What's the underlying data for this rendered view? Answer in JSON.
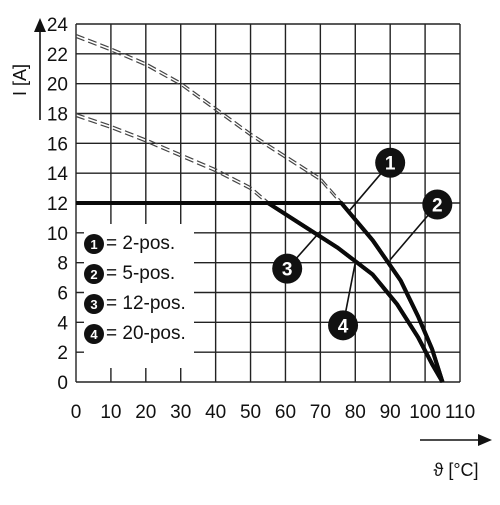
{
  "chart_data": {
    "type": "line",
    "ylabel": "I [A]",
    "xlabel": "ϑ [°C]",
    "xlim": [
      0,
      110
    ],
    "ylim": [
      0,
      24
    ],
    "x_ticks": [
      0,
      10,
      20,
      30,
      40,
      50,
      60,
      70,
      80,
      90,
      100,
      110
    ],
    "y_ticks": [
      0,
      2,
      4,
      6,
      8,
      10,
      12,
      14,
      16,
      18,
      20,
      22,
      24
    ],
    "grid": true,
    "series": [
      {
        "name": "2-pos.",
        "label": "1",
        "style": "solid",
        "points": [
          [
            0,
            12
          ],
          [
            76,
            12
          ],
          [
            85,
            9.5
          ],
          [
            93,
            6.8
          ],
          [
            98,
            4.4
          ],
          [
            102,
            2.2
          ],
          [
            105,
            0
          ]
        ]
      },
      {
        "name": "5-pos.",
        "label": "2",
        "style": "solid",
        "points": [
          [
            0,
            12
          ],
          [
            76,
            12
          ],
          [
            85,
            9.5
          ],
          [
            93,
            6.8
          ],
          [
            98,
            4.4
          ],
          [
            102,
            2.2
          ],
          [
            105,
            0
          ]
        ]
      },
      {
        "name": "12-pos.",
        "label": "3",
        "style": "solid",
        "points": [
          [
            0,
            12
          ],
          [
            55,
            12
          ],
          [
            65,
            10.5
          ],
          [
            75,
            9
          ],
          [
            85,
            7.2
          ],
          [
            92,
            5.2
          ],
          [
            98,
            3
          ],
          [
            102,
            1.2
          ],
          [
            105,
            0
          ]
        ]
      },
      {
        "name": "20-pos.",
        "label": "4",
        "style": "solid",
        "points": [
          [
            0,
            12
          ],
          [
            55,
            12
          ],
          [
            65,
            10.5
          ],
          [
            75,
            9
          ],
          [
            85,
            7.2
          ],
          [
            92,
            5.2
          ],
          [
            98,
            3
          ],
          [
            102,
            1.2
          ],
          [
            105,
            0
          ]
        ]
      }
    ],
    "derating_curves": [
      {
        "style": "dashed",
        "points": [
          [
            0,
            23.2
          ],
          [
            10,
            22.3
          ],
          [
            20,
            21.3
          ],
          [
            30,
            20.0
          ],
          [
            40,
            18.3
          ],
          [
            50,
            16.6
          ],
          [
            60,
            15.1
          ],
          [
            70,
            13.6
          ],
          [
            76,
            12
          ]
        ]
      },
      {
        "style": "dashed",
        "points": [
          [
            0,
            17.9
          ],
          [
            10,
            17.1
          ],
          [
            20,
            16.2
          ],
          [
            30,
            15.2
          ],
          [
            40,
            14.2
          ],
          [
            50,
            13.0
          ],
          [
            55,
            12
          ]
        ]
      }
    ],
    "legend": [
      {
        "badge": "1",
        "text": "= 2-pos."
      },
      {
        "badge": "2",
        "text": "= 5-pos."
      },
      {
        "badge": "3",
        "text": "= 12-pos."
      },
      {
        "badge": "4",
        "text": "= 20-pos."
      }
    ],
    "legend_position": "lower-left",
    "callouts": [
      {
        "badge": "1",
        "target": [
          78,
          11.4
        ]
      },
      {
        "badge": "2",
        "target": [
          90,
          8.2
        ]
      },
      {
        "badge": "3",
        "target": [
          70,
          10.1
        ]
      },
      {
        "badge": "4",
        "target": [
          80,
          8.0
        ]
      }
    ]
  }
}
